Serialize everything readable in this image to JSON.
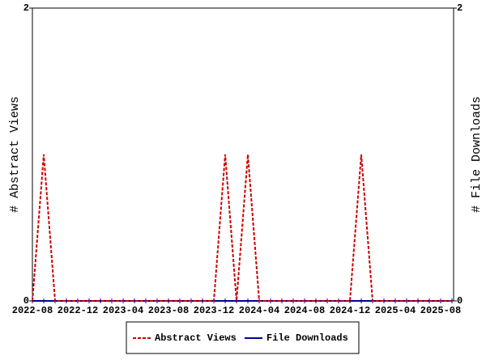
{
  "chart_data": {
    "type": "line",
    "categories": [
      "2022-08",
      null,
      null,
      null,
      "2022-12",
      null,
      null,
      null,
      "2023-04",
      null,
      null,
      null,
      "2023-08",
      null,
      null,
      null,
      "2023-12",
      null,
      null,
      null,
      "2024-04",
      null,
      null,
      null,
      "2024-08",
      null,
      null,
      null,
      "2024-12",
      null,
      null,
      null,
      "2025-04",
      null,
      null,
      null,
      "2025-08",
      null
    ],
    "series": [
      {
        "name": "Abstract Views",
        "color": "#cc0000",
        "dashed": true,
        "values": [
          0,
          1,
          0,
          0,
          0,
          0,
          0,
          0,
          0,
          0,
          0,
          0,
          0,
          0,
          0,
          0,
          0,
          1,
          0,
          1,
          0,
          0,
          0,
          0,
          0,
          0,
          0,
          0,
          0,
          1,
          0,
          0,
          0,
          0,
          0,
          0,
          0,
          0
        ]
      },
      {
        "name": "File Downloads",
        "color": "#000099",
        "dashed": false,
        "axis": "y2",
        "values": [
          0,
          0,
          0,
          0,
          0,
          0,
          0,
          0,
          0,
          0,
          0,
          0,
          0,
          0,
          0,
          0,
          0,
          0,
          0,
          0,
          0,
          0,
          0,
          0,
          0,
          0,
          0,
          0,
          0,
          0,
          0,
          0,
          0,
          0,
          0,
          0,
          0,
          0
        ]
      }
    ],
    "y_label": "# Abstract Views",
    "y2_label": "# File Downloads",
    "ylim": [
      0,
      2
    ],
    "yticks": [
      0,
      2
    ],
    "y2lim": [
      0,
      2
    ],
    "y2ticks": [
      0,
      2
    ],
    "legend": "bottom"
  }
}
